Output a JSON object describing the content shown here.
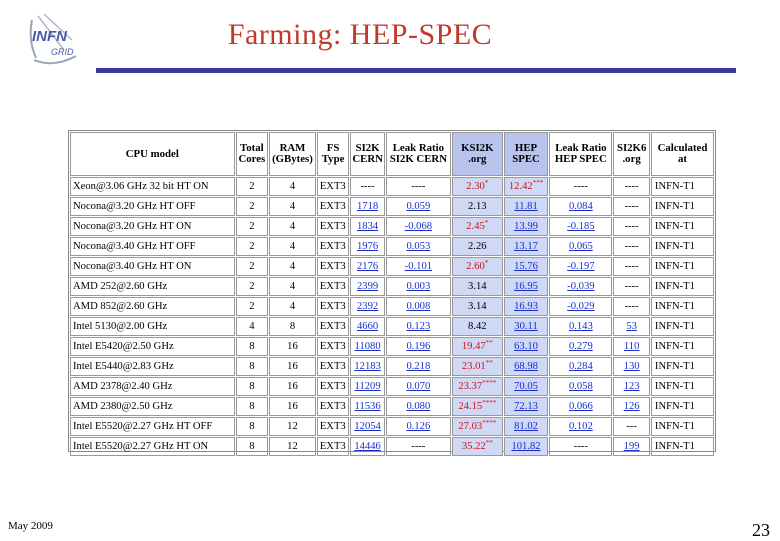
{
  "logo": {
    "text_main": "INFN",
    "text_sub": "GRID"
  },
  "title": "Farming: HEP-SPEC",
  "table": {
    "headers": [
      "CPU model",
      "Total Cores",
      "RAM (GBytes)",
      "FS Type",
      "SI2K CERN",
      "Leak Ratio SI2K CERN",
      "KSI2K .org",
      "HEP SPEC",
      "Leak Ratio HEP SPEC",
      "SI2K6 .org",
      "Calculated at"
    ],
    "rows": [
      {
        "model": "Xeon@3.06 GHz 32 bit HT ON",
        "cores": "2",
        "ram": "4",
        "fs": "EXT3",
        "si2k": "----",
        "leak1": "----",
        "ksi2k": "2.30",
        "ksi2k_mark": "*",
        "hep": "12.42",
        "hep_mark": "***",
        "leak2": "----",
        "si2k6": "----",
        "site": "INFN-T1"
      },
      {
        "model": "Nocona@3.20 GHz HT OFF",
        "cores": "2",
        "ram": "4",
        "fs": "EXT3",
        "si2k": "1718",
        "leak1": "0.059",
        "ksi2k": "2.13",
        "ksi2k_mark": "",
        "hep": "11.81",
        "hep_mark": "",
        "leak2": "0.084",
        "si2k6": "----",
        "site": "INFN-T1"
      },
      {
        "model": "Nocona@3.20 GHz HT ON",
        "cores": "2",
        "ram": "4",
        "fs": "EXT3",
        "si2k": "1834",
        "leak1": "-0.068",
        "ksi2k": "2.45",
        "ksi2k_mark": "*",
        "hep": "13.99",
        "hep_mark": "",
        "leak2": "-0.185",
        "si2k6": "----",
        "site": "INFN-T1"
      },
      {
        "model": "Nocona@3.40 GHz HT OFF",
        "cores": "2",
        "ram": "4",
        "fs": "EXT3",
        "si2k": "1976",
        "leak1": "0.053",
        "ksi2k": "2.26",
        "ksi2k_mark": "",
        "hep": "13.17",
        "hep_mark": "",
        "leak2": "0.065",
        "si2k6": "----",
        "site": "INFN-T1"
      },
      {
        "model": "Nocona@3.40 GHz HT ON",
        "cores": "2",
        "ram": "4",
        "fs": "EXT3",
        "si2k": "2176",
        "leak1": "-0.101",
        "ksi2k": "2.60",
        "ksi2k_mark": "*",
        "hep": "15.76",
        "hep_mark": "",
        "leak2": "-0.197",
        "si2k6": "----",
        "site": "INFN-T1"
      },
      {
        "model": "AMD 252@2.60 GHz",
        "cores": "2",
        "ram": "4",
        "fs": "EXT3",
        "si2k": "2399",
        "leak1": "0.003",
        "ksi2k": "3.14",
        "ksi2k_mark": "",
        "hep": "16.95",
        "hep_mark": "",
        "leak2": "-0.039",
        "si2k6": "----",
        "site": "INFN-T1"
      },
      {
        "model": "AMD 852@2.60 GHz",
        "cores": "2",
        "ram": "4",
        "fs": "EXT3",
        "si2k": "2392",
        "leak1": "0.008",
        "ksi2k": "3.14",
        "ksi2k_mark": "",
        "hep": "16.93",
        "hep_mark": "",
        "leak2": "-0.029",
        "si2k6": "----",
        "site": "INFN-T1"
      },
      {
        "model": "Intel 5130@2.00 GHz",
        "cores": "4",
        "ram": "8",
        "fs": "EXT3",
        "si2k": "4660",
        "leak1": "0.123",
        "ksi2k": "8.42",
        "ksi2k_mark": "",
        "hep": "30.11",
        "hep_mark": "",
        "leak2": "0.143",
        "si2k6": "53",
        "site": "INFN-T1"
      },
      {
        "model": "Intel E5420@2.50 GHz",
        "cores": "8",
        "ram": "16",
        "fs": "EXT3",
        "si2k": "11080",
        "leak1": "0.196",
        "ksi2k": "19.47",
        "ksi2k_mark": "**",
        "hep": "63.10",
        "hep_mark": "",
        "leak2": "0.279",
        "si2k6": "110",
        "site": "INFN-T1"
      },
      {
        "model": "Intel E5440@2.83 GHz",
        "cores": "8",
        "ram": "16",
        "fs": "EXT3",
        "si2k": "12183",
        "leak1": "0.218",
        "ksi2k": "23.01",
        "ksi2k_mark": "**",
        "hep": "68.98",
        "hep_mark": "",
        "leak2": "0.284",
        "si2k6": "130",
        "site": "INFN-T1"
      },
      {
        "model": "AMD 2378@2.40 GHz",
        "cores": "8",
        "ram": "16",
        "fs": "EXT3",
        "si2k": "11209",
        "leak1": "0.070",
        "ksi2k": "23.37",
        "ksi2k_mark": "****",
        "hep": "70.05",
        "hep_mark": "",
        "leak2": "0.058",
        "si2k6": "123",
        "site": "INFN-T1"
      },
      {
        "model": "AMD 2380@2.50 GHz",
        "cores": "8",
        "ram": "16",
        "fs": "EXT3",
        "si2k": "11536",
        "leak1": "0.080",
        "ksi2k": "24.15",
        "ksi2k_mark": "****",
        "hep": "72.13",
        "hep_mark": "",
        "leak2": "0.066",
        "si2k6": "126",
        "site": "INFN-T1"
      },
      {
        "model": "Intel E5520@2.27 GHz HT OFF",
        "cores": "8",
        "ram": "12",
        "fs": "EXT3",
        "si2k": "12054",
        "leak1": "0.126",
        "ksi2k": "27.03",
        "ksi2k_mark": "****",
        "hep": "81.02",
        "hep_mark": "",
        "leak2": "0.102",
        "si2k6": "---",
        "site": "INFN-T1"
      },
      {
        "model": "Intel E5520@2.27 GHz HT ON",
        "cores": "8",
        "ram": "12",
        "fs": "EXT3",
        "si2k": "14446",
        "leak1": "----",
        "ksi2k": "35.22",
        "ksi2k_mark": "**",
        "hep": "101.82",
        "hep_mark": "",
        "leak2": "----",
        "si2k6": "199",
        "site": "INFN-T1"
      }
    ]
  },
  "footer": {
    "date": "May 2009",
    "page": "23"
  },
  "colors": {
    "title": "#c0392b",
    "rule": "#3a3a9a",
    "highlight_column": "#cfd8f5",
    "red_value": "#d21414",
    "link": "#1a2fc7"
  }
}
